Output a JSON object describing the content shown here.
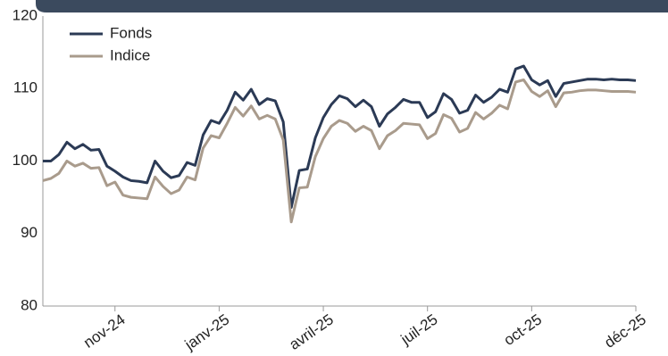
{
  "chart_data": {
    "type": "line",
    "categories": [
      null,
      null,
      null,
      null,
      null,
      null,
      null,
      null,
      null,
      "nov-24",
      null,
      null,
      null,
      null,
      null,
      null,
      null,
      null,
      null,
      null,
      null,
      null,
      "janv-25",
      null,
      null,
      null,
      null,
      null,
      null,
      null,
      null,
      null,
      null,
      null,
      null,
      "avril-25",
      null,
      null,
      null,
      null,
      null,
      null,
      null,
      null,
      null,
      null,
      null,
      null,
      "juil-25",
      null,
      null,
      null,
      null,
      null,
      null,
      null,
      null,
      null,
      null,
      null,
      null,
      "oct-25",
      null,
      null,
      null,
      null,
      null,
      null,
      null,
      null,
      null,
      null,
      null,
      null,
      "déc-25"
    ],
    "series": [
      {
        "name": "Fonds",
        "color": "#2b3a55",
        "values": [
          100.0,
          100.0,
          100.9,
          102.6,
          101.7,
          102.3,
          101.5,
          101.6,
          99.3,
          98.6,
          97.8,
          97.3,
          97.2,
          97.0,
          100.0,
          98.6,
          97.7,
          98.0,
          99.8,
          99.4,
          103.6,
          105.6,
          105.2,
          107.0,
          109.5,
          108.4,
          109.9,
          107.8,
          108.6,
          108.3,
          105.4,
          93.6,
          98.7,
          98.9,
          103.2,
          106.0,
          107.8,
          109.0,
          108.6,
          107.5,
          108.4,
          107.5,
          104.8,
          106.5,
          107.4,
          108.5,
          108.1,
          108.1,
          106.0,
          106.8,
          109.3,
          108.5,
          106.6,
          107.0,
          109.1,
          108.1,
          108.8,
          109.9,
          109.5,
          112.7,
          113.1,
          111.2,
          110.5,
          111.1,
          108.9,
          110.7,
          110.9,
          111.1,
          111.3,
          111.3,
          111.2,
          111.3,
          111.2,
          111.2,
          111.1
        ]
      },
      {
        "name": "Indice",
        "color": "#a99b8c",
        "values": [
          97.3,
          97.6,
          98.3,
          100.0,
          99.3,
          99.7,
          99.0,
          99.1,
          96.6,
          97.1,
          95.3,
          95.0,
          94.9,
          94.8,
          97.8,
          96.5,
          95.5,
          96.0,
          97.8,
          97.4,
          101.8,
          103.5,
          103.2,
          105.2,
          107.4,
          106.2,
          107.6,
          105.8,
          106.3,
          105.8,
          102.9,
          91.6,
          96.3,
          96.4,
          100.6,
          103.1,
          104.8,
          105.6,
          105.2,
          104.1,
          104.8,
          104.2,
          101.7,
          103.5,
          104.2,
          105.2,
          105.1,
          105.0,
          103.1,
          103.8,
          106.4,
          105.9,
          104.0,
          104.5,
          106.7,
          105.8,
          106.6,
          107.7,
          107.2,
          110.9,
          111.2,
          109.6,
          108.9,
          109.7,
          107.5,
          109.4,
          109.5,
          109.7,
          109.8,
          109.8,
          109.7,
          109.6,
          109.6,
          109.6,
          109.5
        ]
      }
    ],
    "ylim": [
      80,
      120
    ],
    "yticks": [
      80,
      90,
      100,
      110,
      120
    ],
    "grid": false,
    "legend": "upper left"
  }
}
